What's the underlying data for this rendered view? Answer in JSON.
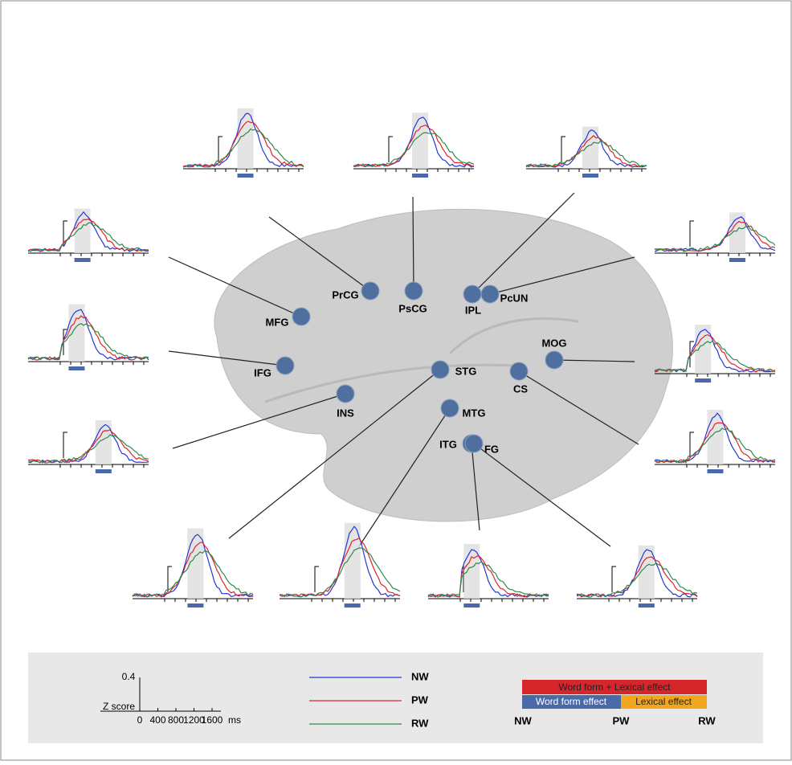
{
  "regions": [
    {
      "label": "PrCG"
    },
    {
      "label": "PsCG"
    },
    {
      "label": "IPL"
    },
    {
      "label": "PcUN"
    },
    {
      "label": "MFG"
    },
    {
      "label": "IFG"
    },
    {
      "label": "MOG"
    },
    {
      "label": "INS"
    },
    {
      "label": "CS"
    },
    {
      "label": "STG"
    },
    {
      "label": "MTG"
    },
    {
      "label": "ITG"
    },
    {
      "label": "FG"
    }
  ],
  "legend": {
    "scale": {
      "value": "0.4",
      "y_label": "Z score",
      "x_ticks": [
        "0",
        "400",
        "800",
        "1200",
        "1600"
      ],
      "x_unit": "ms"
    },
    "lines": [
      {
        "name": "NW",
        "color": "#2536d8"
      },
      {
        "name": "PW",
        "color": "#e0242e"
      },
      {
        "name": "RW",
        "color": "#2e8a4a"
      }
    ],
    "effects": {
      "combined": "Word form + Lexical effect",
      "word_form": "Word form effect",
      "lexical": "Lexical effect",
      "combined_color": "#d7262b",
      "word_form_color": "#4a69a8",
      "lexical_color": "#f2a51e",
      "axis": [
        "NW",
        "PW",
        "RW"
      ]
    }
  }
}
